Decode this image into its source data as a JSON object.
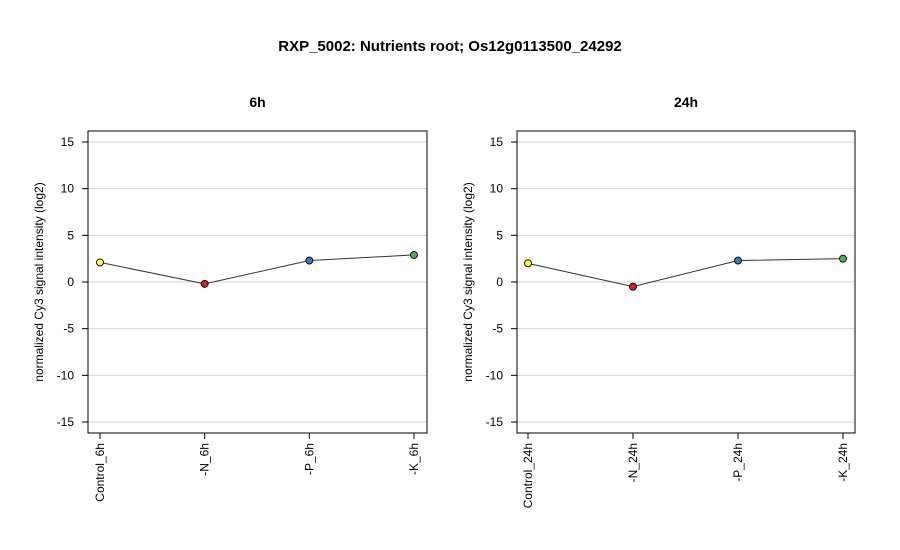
{
  "title": "RXP_5002: Nutrients root; Os12g0113500_24292",
  "chart_data": [
    {
      "type": "line",
      "title": "6h",
      "ylabel": "normalized Cy3 signal intensity (log2)",
      "xlabel": "",
      "ylim": [
        -15,
        15
      ],
      "yticks": [
        -15,
        -10,
        -5,
        0,
        5,
        10,
        15
      ],
      "grid": true,
      "categories": [
        "Control_6h",
        "-N_6h",
        "-P_6h",
        "-K_6h"
      ],
      "values": [
        2.1,
        -0.2,
        2.3,
        2.9
      ],
      "point_colors": [
        "#ffff33",
        "#e41a1c",
        "#377eb8",
        "#4daf4a"
      ]
    },
    {
      "type": "line",
      "title": "24h",
      "ylabel": "normalized Cy3 signal intensity (log2)",
      "xlabel": "",
      "ylim": [
        -15,
        15
      ],
      "yticks": [
        -15,
        -10,
        -5,
        0,
        5,
        10,
        15
      ],
      "grid": true,
      "categories": [
        "Control_24h",
        "-N_24h",
        "-P_24h",
        "-K_24h"
      ],
      "values": [
        2.0,
        -0.5,
        2.3,
        2.5
      ],
      "point_colors": [
        "#ffff33",
        "#e41a1c",
        "#377eb8",
        "#4daf4a"
      ]
    }
  ]
}
